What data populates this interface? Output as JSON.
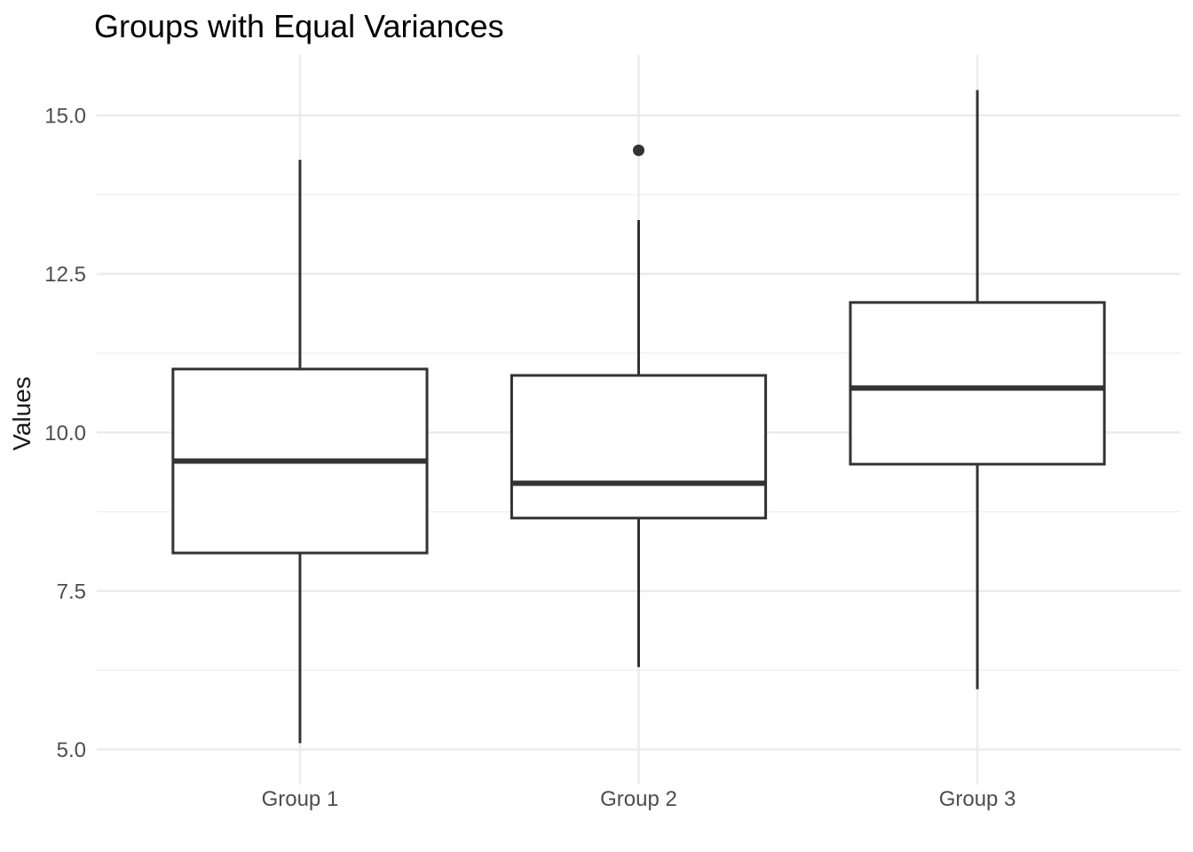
{
  "chart_data": {
    "type": "boxplot",
    "title": "Groups with Equal Variances",
    "xlabel": "",
    "ylabel": "Values",
    "categories": [
      "Group 1",
      "Group 2",
      "Group 3"
    ],
    "series": [
      {
        "name": "Group 1",
        "whisker_min": 5.1,
        "q1": 8.1,
        "median": 9.55,
        "q3": 11.0,
        "whisker_max": 14.3,
        "outliers": []
      },
      {
        "name": "Group 2",
        "whisker_min": 6.3,
        "q1": 8.65,
        "median": 9.2,
        "q3": 10.9,
        "whisker_max": 13.35,
        "outliers": [
          14.45
        ]
      },
      {
        "name": "Group 3",
        "whisker_min": 5.95,
        "q1": 9.5,
        "median": 10.7,
        "q3": 12.05,
        "whisker_max": 15.4,
        "outliers": []
      }
    ],
    "y_ticks": [
      {
        "value": 5.0,
        "label": "5.0"
      },
      {
        "value": 7.5,
        "label": "7.5"
      },
      {
        "value": 10.0,
        "label": "10.0"
      },
      {
        "value": 12.5,
        "label": "12.5"
      },
      {
        "value": 15.0,
        "label": "15.0"
      }
    ],
    "y_minor_ticks": [
      6.25,
      8.75,
      11.25,
      13.75
    ],
    "ylim": [
      4.6,
      15.95
    ],
    "grid": "horizontal major + minor, vertical major at each category; no axis lines, no ticks",
    "legend": "none",
    "colors": {
      "box_stroke": "#333333",
      "median_stroke": "#333333",
      "outlier_fill": "#333333",
      "grid_major": "#ebebeb",
      "grid_minor": "#f0f0f0",
      "axis_text": "#4d4d4d",
      "title_text": "#000000",
      "background": "#ffffff",
      "box_fill": "#ffffff"
    }
  }
}
